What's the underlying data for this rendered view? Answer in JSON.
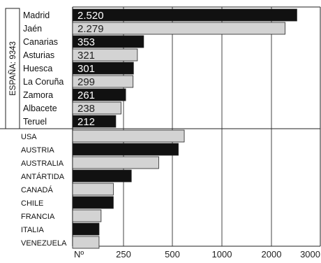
{
  "chart_data": {
    "type": "bar",
    "orientation": "horizontal",
    "axis_scale": "piecewise",
    "x_ticks": [
      "250",
      "500",
      "1000",
      "2000",
      "3000"
    ],
    "x_tick_values": [
      250,
      500,
      1000,
      2000,
      3000
    ],
    "x_axis_prefix": "Nº",
    "groups": [
      {
        "label": "ESPAÑA: 9343",
        "categories": [
          "Madrid",
          "Jaén",
          "Canarias",
          "Asturias",
          "Huesca",
          "La Coruña",
          "Zamora",
          "Albacete",
          "Teruel"
        ],
        "values": [
          2520,
          2279,
          353,
          321,
          301,
          299,
          261,
          238,
          212
        ],
        "value_labels": [
          "2.520",
          "2.279",
          "353",
          "321",
          "301",
          "299",
          "261",
          "238",
          "212"
        ],
        "fills": [
          "dark",
          "light",
          "dark",
          "light",
          "dark",
          "light",
          "dark",
          "light",
          "dark"
        ]
      },
      {
        "label": "",
        "categories": [
          "USA",
          "AUSTRIA",
          "AUSTRALIA",
          "ANTÁRTIDA",
          "CANADÁ",
          "CHILE",
          "FRANCIA",
          "ITALIA",
          "VENEZUELA"
        ],
        "values": [
          620,
          560,
          430,
          290,
          200,
          200,
          140,
          130,
          130
        ],
        "value_labels": [],
        "fills": [
          "light",
          "dark",
          "light",
          "dark",
          "light",
          "dark",
          "light",
          "dark",
          "light"
        ]
      }
    ],
    "grid": true,
    "colors": {
      "dark": "#111111",
      "light": "#d3d3d3",
      "grid": "#444444"
    }
  }
}
